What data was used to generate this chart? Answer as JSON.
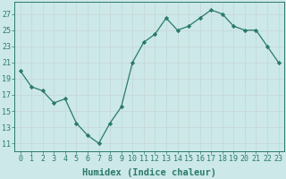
{
  "x": [
    0,
    1,
    2,
    3,
    4,
    5,
    6,
    7,
    8,
    9,
    10,
    11,
    12,
    13,
    14,
    15,
    16,
    17,
    18,
    19,
    20,
    21,
    22,
    23
  ],
  "y": [
    20,
    18,
    17.5,
    16,
    16.5,
    13.5,
    12,
    11,
    13.5,
    15.5,
    21,
    23.5,
    24.5,
    26.5,
    25,
    25.5,
    26.5,
    27.5,
    27,
    25.5,
    25,
    25,
    23,
    21
  ],
  "xlabel": "Humidex (Indice chaleur)",
  "yticks": [
    11,
    13,
    15,
    17,
    19,
    21,
    23,
    25,
    27
  ],
  "xticks": [
    0,
    1,
    2,
    3,
    4,
    5,
    6,
    7,
    8,
    9,
    10,
    11,
    12,
    13,
    14,
    15,
    16,
    17,
    18,
    19,
    20,
    21,
    22,
    23
  ],
  "ylim": [
    10.0,
    28.5
  ],
  "xlim": [
    -0.5,
    23.5
  ],
  "line_color": "#2a7a6a",
  "bg_color": "#cce8e8",
  "grid_color": "#b0d0d0",
  "tick_fontsize": 6.0,
  "label_fontsize": 7.5
}
